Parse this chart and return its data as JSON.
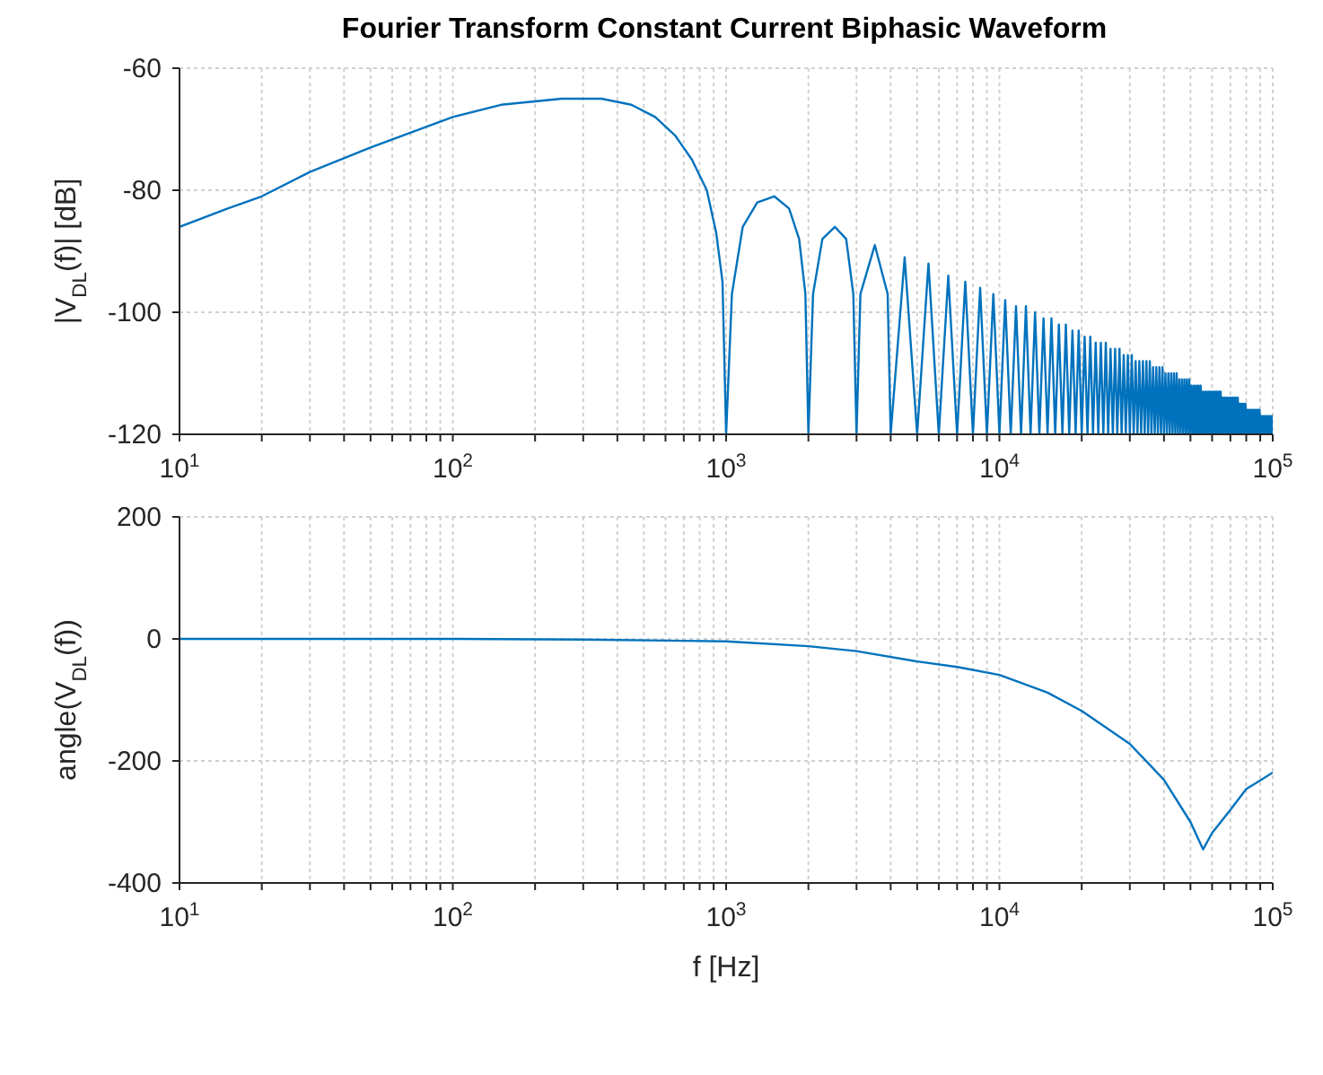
{
  "chart_data": [
    {
      "type": "line",
      "title": "Fourier Transform Constant Current Biphasic Waveform",
      "ylabel": "|V$_{DL}$(f)| [dB]",
      "log": "x",
      "grid": true,
      "color": "#0072bd",
      "xlim": [
        10,
        100000
      ],
      "ylim": [
        -120,
        -60
      ],
      "yticks": [
        -120,
        -100,
        -80,
        -60
      ],
      "xticks": [
        {
          "value": 10,
          "label": "10$^{1}$"
        },
        {
          "value": 20,
          "label": null
        },
        {
          "value": 30,
          "label": null
        },
        {
          "value": 40,
          "label": null
        },
        {
          "value": 50,
          "label": null
        },
        {
          "value": 60,
          "label": null
        },
        {
          "value": 70,
          "label": null
        },
        {
          "value": 80,
          "label": null
        },
        {
          "value": 90,
          "label": null
        },
        {
          "value": 100,
          "label": "10$^{2}$"
        },
        {
          "value": 200,
          "label": null
        },
        {
          "value": 300,
          "label": null
        },
        {
          "value": 400,
          "label": null
        },
        {
          "value": 500,
          "label": null
        },
        {
          "value": 600,
          "label": null
        },
        {
          "value": 700,
          "label": null
        },
        {
          "value": 800,
          "label": null
        },
        {
          "value": 900,
          "label": null
        },
        {
          "value": 1000,
          "label": "10$^{3}$"
        },
        {
          "value": 2000,
          "label": null
        },
        {
          "value": 3000,
          "label": null
        },
        {
          "value": 4000,
          "label": null
        },
        {
          "value": 5000,
          "label": null
        },
        {
          "value": 6000,
          "label": null
        },
        {
          "value": 7000,
          "label": null
        },
        {
          "value": 8000,
          "label": null
        },
        {
          "value": 9000,
          "label": null
        },
        {
          "value": 10000,
          "label": "10$^{4}$"
        },
        {
          "value": 20000,
          "label": null
        },
        {
          "value": 30000,
          "label": null
        },
        {
          "value": 40000,
          "label": null
        },
        {
          "value": 50000,
          "label": null
        },
        {
          "value": 60000,
          "label": null
        },
        {
          "value": 70000,
          "label": null
        },
        {
          "value": 80000,
          "label": null
        },
        {
          "value": 90000,
          "label": null
        },
        {
          "value": 100000,
          "label": "10$^{5}$"
        }
      ],
      "x": [
        10,
        15,
        20,
        30,
        50,
        100,
        150,
        250,
        350,
        450,
        550,
        650,
        750,
        850,
        920,
        970,
        1000,
        1050,
        1150,
        1300,
        1500,
        1700,
        1850,
        1950,
        2000,
        2080,
        2250,
        2500,
        2750,
        2920,
        3000,
        3100,
        3500,
        3900,
        4000,
        4500,
        5000,
        5500,
        6000,
        6500,
        7000,
        7500,
        8000,
        8500,
        9000,
        9500,
        10000,
        10500,
        11000,
        11500,
        12000,
        12500,
        13000,
        13500,
        14000,
        14500,
        15000,
        15500,
        16000,
        16500,
        17000,
        17500,
        18000,
        18500,
        19000,
        19500,
        20000,
        20500,
        21000,
        21500,
        22000,
        22500,
        23000,
        23500,
        24000,
        24500,
        25000,
        25500,
        26000,
        26500,
        27000,
        27500,
        28000,
        28500,
        29000,
        29500,
        30000,
        30500,
        31000,
        31500,
        32000,
        32500,
        33000,
        33500,
        34000,
        34500,
        35000,
        35500,
        36000,
        36500,
        37000,
        37500,
        38000,
        38500,
        39000,
        39500,
        40000,
        40500,
        41000,
        41500,
        42000,
        42500,
        43000,
        43500,
        44000,
        44500,
        45000,
        45500,
        46000,
        46500,
        47000,
        47500,
        48000,
        48500,
        49000,
        49500,
        50000,
        50500,
        51000,
        51500,
        52000,
        52500,
        53000,
        53500,
        54000,
        54500,
        55000,
        55500,
        56000,
        56500,
        57000,
        57500,
        58000,
        58500,
        59000,
        59500,
        60000,
        60500,
        61000,
        61500,
        62000,
        62500,
        63000,
        63500,
        64000,
        64500,
        65000,
        65500,
        66000,
        66500,
        67000,
        67500,
        68000,
        68500,
        69000,
        69500,
        70000,
        70500,
        71000,
        71500,
        72000,
        72500,
        73000,
        73500,
        74000,
        74500,
        75000,
        75500,
        76000,
        76500,
        77000,
        77500,
        78000,
        78500,
        79000,
        79500,
        80000,
        80500,
        81000,
        81500,
        82000,
        82500,
        83000,
        83500,
        84000,
        84500,
        85000,
        85500,
        86000,
        86500,
        87000,
        87500,
        88000,
        88500,
        89000,
        89500,
        90000,
        90500,
        91000,
        91500,
        92000,
        92500,
        93000,
        93500,
        94000,
        94500,
        95000,
        95500,
        96000,
        96500,
        97000,
        97500,
        98000,
        98500,
        99000,
        99500,
        100000
      ],
      "values": [
        -86,
        -83,
        -81,
        -77,
        -73,
        -68,
        -66,
        -65,
        -65,
        -66,
        -68,
        -71,
        -75,
        -80,
        -87,
        -95,
        -120,
        -97,
        -86,
        -82,
        -81,
        -83,
        -88,
        -97,
        -120,
        -97,
        -88,
        -86,
        -88,
        -97,
        -120,
        -97,
        -89,
        -97,
        -120,
        -91,
        -120,
        -92,
        -120,
        -94,
        -120,
        -95,
        -120,
        -96,
        -120,
        -97,
        -120,
        -98,
        -120,
        -99,
        -120,
        -99,
        -120,
        -100,
        -120,
        -101,
        -120,
        -101,
        -120,
        -102,
        -120,
        -102,
        -120,
        -103,
        -120,
        -103,
        -120,
        -104,
        -120,
        -104,
        -120,
        -105,
        -120,
        -105,
        -120,
        -105,
        -120,
        -106,
        -120,
        -106,
        -120,
        -106,
        -120,
        -107,
        -120,
        -107,
        -120,
        -107,
        -120,
        -108,
        -120,
        -108,
        -120,
        -108,
        -120,
        -108,
        -120,
        -108,
        -120,
        -109,
        -120,
        -109,
        -120,
        -109,
        -120,
        -109,
        -120,
        -110,
        -120,
        -110,
        -120,
        -110,
        -120,
        -110,
        -120,
        -110,
        -120,
        -111,
        -120,
        -111,
        -120,
        -111,
        -120,
        -111,
        -120,
        -111,
        -120,
        -112,
        -120,
        -112,
        -120,
        -112,
        -120,
        -112,
        -120,
        -112,
        -120,
        -113,
        -120,
        -113,
        -120,
        -113,
        -120,
        -113,
        -120,
        -113,
        -120,
        -113,
        -120,
        -113,
        -120,
        -113,
        -120,
        -113,
        -120,
        -113,
        -120,
        -114,
        -120,
        -114,
        -120,
        -114,
        -120,
        -114,
        -120,
        -114,
        -120,
        -114,
        -120,
        -114,
        -120,
        -114,
        -120,
        -114,
        -120,
        -114,
        -120,
        -115,
        -120,
        -115,
        -120,
        -115,
        -120,
        -115,
        -120,
        -115,
        -120,
        -116,
        -120,
        -116,
        -120,
        -116,
        -120,
        -116,
        -120,
        -116,
        -120,
        -116,
        -120,
        -116,
        -120,
        -116,
        -120,
        -116,
        -120,
        -116,
        -120,
        -117,
        -120,
        -117,
        -120,
        -117,
        -120,
        -117,
        -120,
        -117,
        -120,
        -117,
        -120,
        -117,
        -120,
        -117,
        -120,
        -117,
        -120,
        -117,
        -120
      ]
    },
    {
      "type": "line",
      "xlabel": "f [Hz]",
      "ylabel": "angle(V$_{DL}$(f))",
      "log": "x",
      "grid": true,
      "color": "#0072bd",
      "xlim": [
        10,
        100000
      ],
      "ylim": [
        -400,
        200
      ],
      "yticks": [
        -400,
        -200,
        0,
        200
      ],
      "xticks": [
        {
          "value": 10,
          "label": "10$^{1}$"
        },
        {
          "value": 20,
          "label": null
        },
        {
          "value": 30,
          "label": null
        },
        {
          "value": 40,
          "label": null
        },
        {
          "value": 50,
          "label": null
        },
        {
          "value": 60,
          "label": null
        },
        {
          "value": 70,
          "label": null
        },
        {
          "value": 80,
          "label": null
        },
        {
          "value": 90,
          "label": null
        },
        {
          "value": 100,
          "label": "10$^{2}$"
        },
        {
          "value": 200,
          "label": null
        },
        {
          "value": 300,
          "label": null
        },
        {
          "value": 400,
          "label": null
        },
        {
          "value": 500,
          "label": null
        },
        {
          "value": 600,
          "label": null
        },
        {
          "value": 700,
          "label": null
        },
        {
          "value": 800,
          "label": null
        },
        {
          "value": 900,
          "label": null
        },
        {
          "value": 1000,
          "label": "10$^{3}$"
        },
        {
          "value": 2000,
          "label": null
        },
        {
          "value": 3000,
          "label": null
        },
        {
          "value": 4000,
          "label": null
        },
        {
          "value": 5000,
          "label": null
        },
        {
          "value": 6000,
          "label": null
        },
        {
          "value": 7000,
          "label": null
        },
        {
          "value": 8000,
          "label": null
        },
        {
          "value": 9000,
          "label": null
        },
        {
          "value": 10000,
          "label": "10$^{4}$"
        },
        {
          "value": 20000,
          "label": null
        },
        {
          "value": 30000,
          "label": null
        },
        {
          "value": 40000,
          "label": null
        },
        {
          "value": 50000,
          "label": null
        },
        {
          "value": 60000,
          "label": null
        },
        {
          "value": 70000,
          "label": null
        },
        {
          "value": 80000,
          "label": null
        },
        {
          "value": 90000,
          "label": null
        },
        {
          "value": 100000,
          "label": "10$^{5}$"
        }
      ],
      "x": [
        10,
        100,
        300,
        1000,
        2000,
        3000,
        5000,
        7000,
        10000,
        15000,
        20000,
        30000,
        40000,
        50000,
        55600,
        60000,
        70000,
        80000,
        90000,
        100000
      ],
      "values": [
        0,
        0,
        -1,
        -4,
        -12,
        -20,
        -37,
        -46,
        -59,
        -88,
        -118,
        -172,
        -231,
        -300,
        -345,
        -318,
        -280,
        -246,
        -232,
        -219
      ]
    }
  ]
}
